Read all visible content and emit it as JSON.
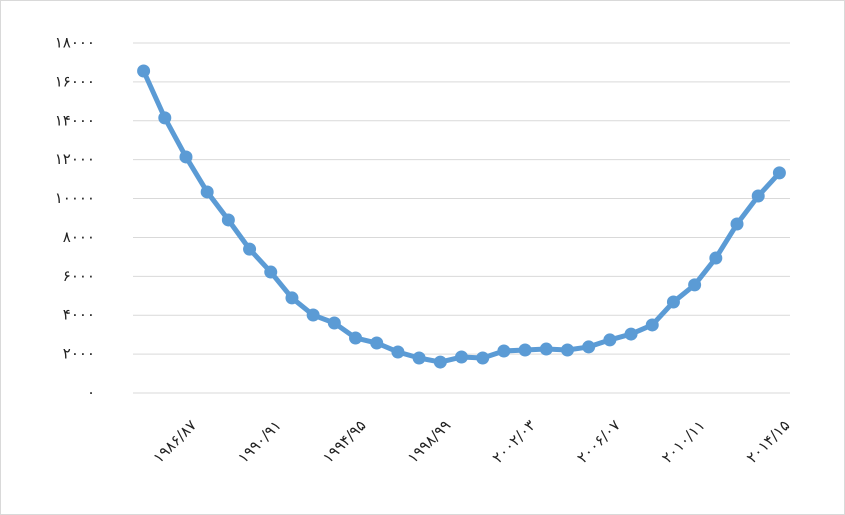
{
  "chart_data": {
    "type": "line",
    "categories": [
      null,
      null,
      "۱۹۸۶/۸۷",
      null,
      null,
      null,
      "۱۹۹۰/۹۱",
      null,
      null,
      null,
      "۱۹۹۴/۹۵",
      null,
      null,
      null,
      "۱۹۹۸/۹۹",
      null,
      null,
      null,
      "۲۰۰۲/۰۳",
      null,
      null,
      null,
      "۲۰۰۶/۰۷",
      null,
      null,
      null,
      "۲۰۱۰/۱۱",
      null,
      null,
      null,
      "۲۰۱۴/۱۵"
    ],
    "series": [
      {
        "color": "#5b9bd5",
        "values": [
          16560,
          14150,
          12140,
          10340,
          8900,
          7400,
          6220,
          4890,
          4010,
          3600,
          2830,
          2570,
          2110,
          1800,
          1590,
          1850,
          1800,
          2160,
          2210,
          2260,
          2210,
          2370,
          2730,
          3030,
          3500,
          4680,
          5560,
          6940,
          8690,
          10130,
          11320
        ]
      }
    ],
    "ylim": [
      0,
      18000
    ],
    "yticks": [
      {
        "value": 0,
        "label": "۰"
      },
      {
        "value": 2000,
        "label": "۲۰۰۰"
      },
      {
        "value": 4000,
        "label": "۴۰۰۰"
      },
      {
        "value": 6000,
        "label": "۶۰۰۰"
      },
      {
        "value": 8000,
        "label": "۸۰۰۰"
      },
      {
        "value": 10000,
        "label": "۱۰۰۰۰"
      },
      {
        "value": 12000,
        "label": "۱۲۰۰۰"
      },
      {
        "value": 14000,
        "label": "۱۴۰۰۰"
      },
      {
        "value": 16000,
        "label": "۱۶۰۰۰"
      },
      {
        "value": 18000,
        "label": "۱۸۰۰۰"
      }
    ],
    "grid": true
  }
}
